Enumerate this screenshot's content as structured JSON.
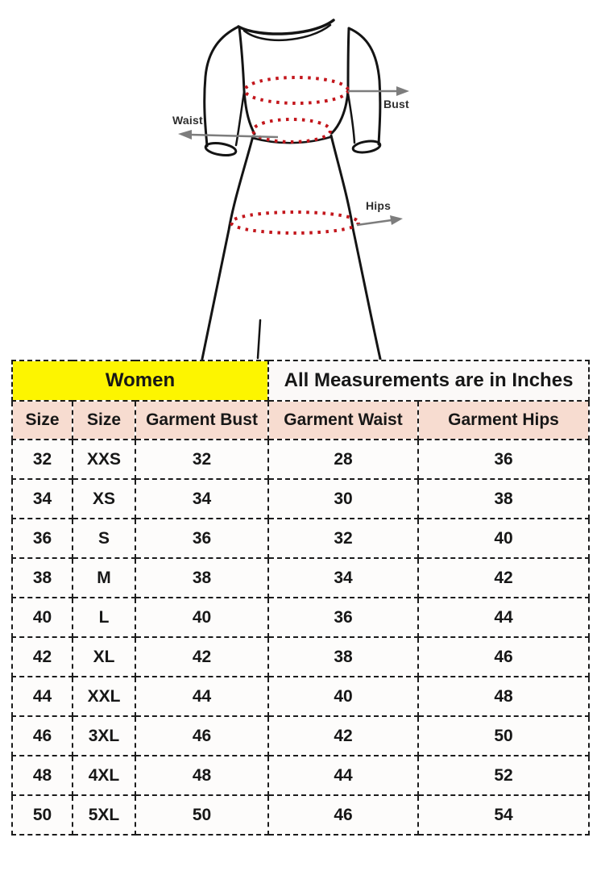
{
  "illustration": {
    "labels": {
      "bust": "Bust",
      "waist": "Waist",
      "hips": "Hips"
    },
    "dotted_color": "#c3161c",
    "arrow_color": "#7d7d7d",
    "outline_color": "#141414"
  },
  "table": {
    "group_headers": {
      "women": "Women",
      "units": "All Measurements are in Inches"
    },
    "columns": [
      "Size",
      "Size",
      "Garment Bust",
      "Garment Waist",
      "Garment Hips"
    ],
    "rows": [
      [
        "32",
        "XXS",
        "32",
        "28",
        "36"
      ],
      [
        "34",
        "XS",
        "34",
        "30",
        "38"
      ],
      [
        "36",
        "S",
        "36",
        "32",
        "40"
      ],
      [
        "38",
        "M",
        "38",
        "34",
        "42"
      ],
      [
        "40",
        "L",
        "40",
        "36",
        "44"
      ],
      [
        "42",
        "XL",
        "42",
        "38",
        "46"
      ],
      [
        "44",
        "XXL",
        "44",
        "40",
        "48"
      ],
      [
        "46",
        "3XL",
        "46",
        "42",
        "50"
      ],
      [
        "48",
        "4XL",
        "48",
        "44",
        "52"
      ],
      [
        "50",
        "5XL",
        "50",
        "46",
        "54"
      ]
    ],
    "colors": {
      "women_bg": "#fdf500",
      "header_bg": "#f7dcd0"
    }
  }
}
